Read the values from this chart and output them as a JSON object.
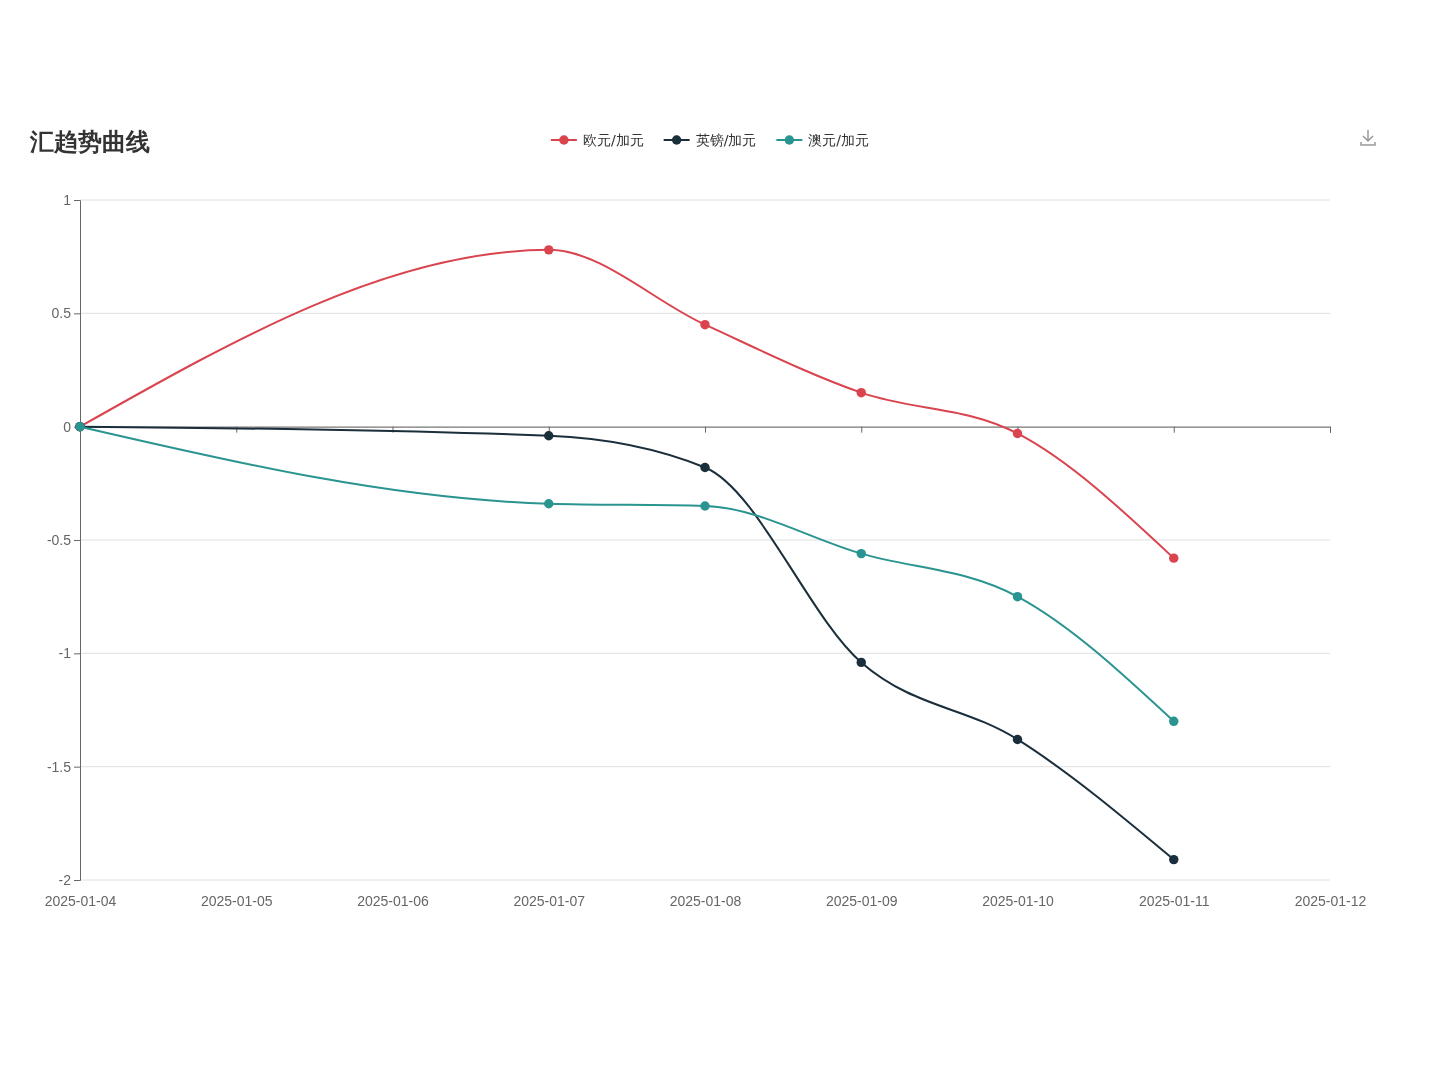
{
  "chart_data": {
    "type": "line",
    "title": "汇趋势曲线",
    "x": [
      "2025-01-04",
      "2025-01-07",
      "2025-01-08",
      "2025-01-09",
      "2025-01-10",
      "2025-01-11"
    ],
    "series": [
      {
        "name": "欧元/加元",
        "color": "#d9444f",
        "values": [
          0,
          0.78,
          0.45,
          0.15,
          -0.03,
          -0.58
        ]
      },
      {
        "name": "英镑/加元",
        "color": "#1a2e3b",
        "values": [
          0,
          -0.04,
          -0.18,
          -1.04,
          -1.38,
          -1.91
        ]
      },
      {
        "name": "澳元/加元",
        "color": "#2a9490",
        "values": [
          0,
          -0.34,
          -0.35,
          -0.56,
          -0.75,
          -1.3
        ]
      }
    ],
    "xlim": [
      "2025-01-04",
      "2025-01-12"
    ],
    "xticks": [
      "2025-01-04",
      "2025-01-05",
      "2025-01-06",
      "2025-01-07",
      "2025-01-08",
      "2025-01-09",
      "2025-01-10",
      "2025-01-11",
      "2025-01-12"
    ],
    "ylim": [
      -2,
      1
    ],
    "yticks": [
      -2,
      -1.5,
      -1,
      -0.5,
      0,
      0.5,
      1
    ],
    "grid": "y",
    "legend": "top",
    "marker": "circle",
    "line_style": "solid"
  }
}
